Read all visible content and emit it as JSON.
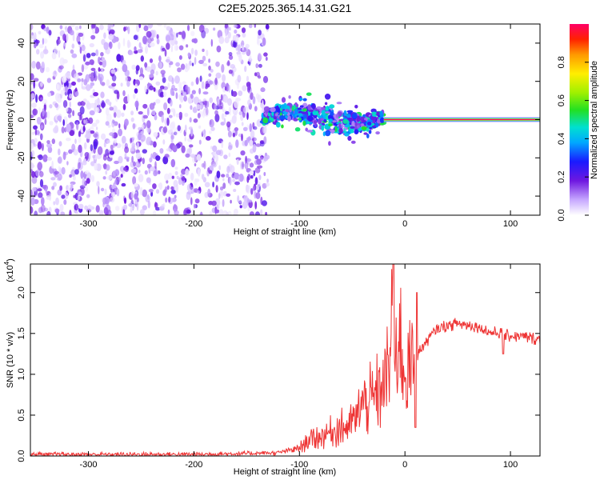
{
  "title": "C2E5.2025.365.14.31.G21",
  "chart_data": [
    {
      "type": "heatmap",
      "xlabel": "Height of straight line (km)",
      "ylabel": "Frequency (Hz)",
      "xlim": [
        -355,
        128
      ],
      "ylim": [
        -50,
        50
      ],
      "xticks": [
        -300,
        -200,
        -100,
        0,
        100
      ],
      "yticks": [
        -40,
        -20,
        0,
        20,
        40
      ],
      "colorbar": {
        "label": "Normalized spectral amplitude",
        "range": [
          0,
          1
        ],
        "ticks": [
          0.0,
          0.2,
          0.4,
          0.6,
          0.8
        ]
      },
      "regions": [
        {
          "x": [
            -355,
            -130
          ],
          "y": [
            -50,
            50
          ],
          "amplitude": [
            0.02,
            0.22
          ],
          "pattern": "noise"
        },
        {
          "x": [
            -135,
            -20
          ],
          "y": [
            -12,
            14
          ],
          "amplitude": [
            0.1,
            0.55
          ],
          "pattern": "scattered signal"
        },
        {
          "x": [
            -20,
            128
          ],
          "y": [
            -1,
            1
          ],
          "amplitude": [
            0.1,
            1.0
          ],
          "pattern": "carrier line"
        }
      ]
    },
    {
      "type": "line",
      "xlabel": "Height of straight line (km)",
      "ylabel": "SNR (10 * v/v)",
      "scale_label": "(x10",
      "scale_exp": "4",
      "scale_close": ")",
      "xlim": [
        -355,
        128
      ],
      "ylim": [
        0,
        2.35
      ],
      "xticks": [
        -300,
        -200,
        -100,
        0,
        100
      ],
      "yticks": [
        0.0,
        0.5,
        1.0,
        1.5,
        2.0
      ],
      "color": "#ee3333",
      "x": [
        -355,
        -300,
        -250,
        -200,
        -150,
        -120,
        -100,
        -90,
        -80,
        -70,
        -60,
        -50,
        -45,
        -40,
        -35,
        -30,
        -25,
        -20,
        -15,
        -12,
        -10,
        -8,
        -5,
        -2,
        0,
        5,
        10,
        20,
        30,
        40,
        50,
        60,
        70,
        80,
        90,
        95,
        100,
        110,
        128
      ],
      "y": [
        0.02,
        0.02,
        0.02,
        0.02,
        0.03,
        0.04,
        0.1,
        0.2,
        0.25,
        0.3,
        0.35,
        0.4,
        0.5,
        0.65,
        0.7,
        0.65,
        0.8,
        0.9,
        1.0,
        1.9,
        0.8,
        1.3,
        1.4,
        1.2,
        1.1,
        1.05,
        1.2,
        1.4,
        1.55,
        1.6,
        1.62,
        1.6,
        1.58,
        1.52,
        1.5,
        1.48,
        1.47,
        1.46,
        1.43
      ],
      "peaks": [
        {
          "x": -11,
          "y": 2.35
        },
        {
          "x": 11,
          "y": 2.0
        },
        {
          "x": 10,
          "y": 0.35
        },
        {
          "x": 93,
          "y": 1.25
        }
      ]
    }
  ]
}
